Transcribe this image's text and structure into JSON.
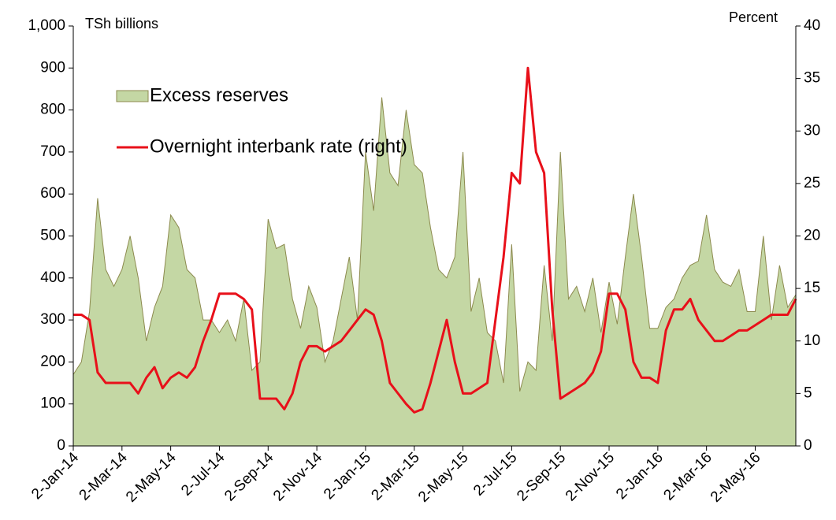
{
  "chart_data": {
    "type": "area_line",
    "y_label": "TSh billions",
    "y2_label": "Percent",
    "legend_position": "upper left",
    "categories": [
      "2-Jan-14",
      null,
      null,
      null,
      null,
      null,
      "2-Mar-14",
      null,
      null,
      null,
      null,
      null,
      "2-May-14",
      null,
      null,
      null,
      null,
      null,
      "2-Jul-14",
      null,
      null,
      null,
      null,
      null,
      "2-Sep-14",
      null,
      null,
      null,
      null,
      null,
      "2-Nov-14",
      null,
      null,
      null,
      null,
      null,
      "2-Jan-15",
      null,
      null,
      null,
      null,
      null,
      "2-Mar-15",
      null,
      null,
      null,
      null,
      null,
      "2-May-15",
      null,
      null,
      null,
      null,
      null,
      "2-Jul-15",
      null,
      null,
      null,
      null,
      null,
      "2-Sep-15",
      null,
      null,
      null,
      null,
      null,
      "2-Nov-15",
      null,
      null,
      null,
      null,
      null,
      "2-Jan-16",
      null,
      null,
      null,
      null,
      null,
      "2-Mar-16",
      null,
      null,
      null,
      null,
      null,
      "2-May-16",
      null,
      null,
      null,
      null,
      null
    ],
    "series": [
      {
        "name": "Excess reserves",
        "kind": "area",
        "color": "#c4d7a4",
        "edge_color": "#8c8a4e",
        "values": [
          170,
          200,
          320,
          590,
          420,
          380,
          420,
          500,
          400,
          250,
          330,
          380,
          550,
          520,
          420,
          400,
          300,
          300,
          270,
          300,
          250,
          350,
          180,
          200,
          540,
          470,
          480,
          350,
          280,
          380,
          330,
          200,
          250,
          350,
          450,
          300,
          700,
          560,
          830,
          650,
          620,
          800,
          670,
          650,
          520,
          420,
          400,
          450,
          700,
          320,
          400,
          270,
          250,
          150,
          480,
          130,
          200,
          180,
          430,
          250,
          700,
          350,
          380,
          320,
          400,
          270,
          390,
          290,
          450,
          600,
          450,
          280,
          280,
          330,
          350,
          400,
          430,
          440,
          550,
          420,
          390,
          380,
          420,
          320,
          320,
          500,
          300,
          430,
          330,
          360
        ]
      },
      {
        "name": "Overnight interbank rate (right)",
        "kind": "line",
        "axis": "y2",
        "color": "#e8101a",
        "values": [
          12.5,
          12.5,
          12,
          7,
          6,
          6,
          6,
          6,
          5,
          6.5,
          7.5,
          5.5,
          6.5,
          7,
          6.5,
          7.5,
          10,
          12,
          14.5,
          14.5,
          14.5,
          14,
          13,
          4.5,
          4.5,
          4.5,
          3.5,
          5,
          8,
          9.5,
          9.5,
          9,
          9.5,
          10,
          11,
          12,
          13,
          12.5,
          10,
          6,
          5,
          4,
          3.2,
          3.5,
          6,
          9,
          12,
          8,
          5,
          5,
          5.5,
          6,
          12,
          18,
          26,
          25,
          36,
          28,
          26,
          13,
          4.5,
          5,
          5.5,
          6,
          7,
          9,
          14.5,
          14.5,
          13,
          8,
          6.5,
          6.5,
          6,
          11,
          13,
          13,
          14,
          12,
          11,
          10,
          10,
          10.5,
          11,
          11,
          11.5,
          12,
          12.5,
          12.5,
          12.5,
          14
        ]
      }
    ],
    "ylim": [
      0,
      1000
    ],
    "yticks": [
      0,
      100,
      200,
      300,
      400,
      500,
      600,
      700,
      800,
      900,
      {
        "value": 1000,
        "label": "1,000"
      }
    ],
    "y2lim": [
      0,
      40
    ],
    "y2ticks": [
      0,
      5,
      10,
      15,
      20,
      25,
      30,
      35,
      40
    ]
  }
}
